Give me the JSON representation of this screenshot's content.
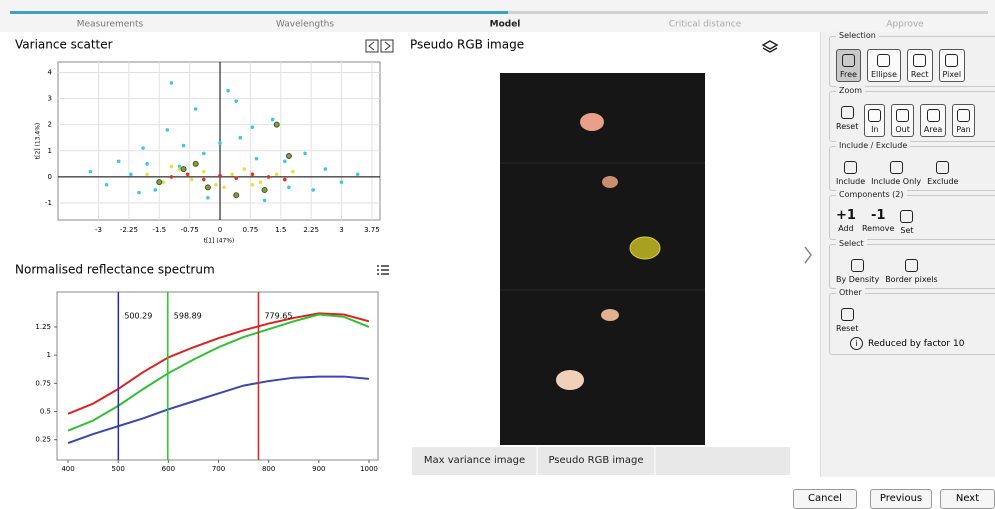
{
  "tabs": [
    "Measurements",
    "Wavelengths",
    "Model",
    "Critical distance",
    "Approve"
  ],
  "scatter": {
    "title": "Variance scatter",
    "xlabel": "t[1] (47%)",
    "ylabel": "t[2] (13.4%)",
    "xlim": [
      -4,
      3.95
    ],
    "ylim": [
      -1.65,
      4.4
    ],
    "xticks": [
      -3,
      -2.25,
      -1.5,
      -0.75,
      0,
      0.75,
      1.5,
      2.25,
      3,
      3.75
    ],
    "yticks": [
      -1,
      0,
      1,
      2,
      3,
      4
    ],
    "grid": true,
    "series": [
      {
        "color": "#3cc8e8",
        "x": [
          -3.2,
          -2.8,
          -2.5,
          -2.2,
          -1.9,
          -1.6,
          -1.3,
          -1.0,
          -0.6,
          -0.3,
          0.2,
          0.5,
          0.9,
          1.3,
          1.7,
          2.1,
          2.6,
          3.0,
          3.4,
          -1.8,
          -0.9,
          0.4,
          1.1,
          -2.0,
          -0.4,
          0.8,
          2.3,
          -1.2,
          0.0,
          1.6
        ],
        "y": [
          0.2,
          -0.3,
          0.6,
          0.1,
          1.1,
          -0.5,
          1.8,
          0.4,
          2.6,
          -0.8,
          3.3,
          1.5,
          0.7,
          2.2,
          -0.4,
          0.9,
          0.3,
          -0.2,
          0.1,
          0.5,
          1.2,
          2.9,
          -0.9,
          -0.6,
          0.9,
          1.9,
          -0.5,
          3.6,
          1.3,
          0.6
        ]
      },
      {
        "color": "#e8e040",
        "x": [
          -1.8,
          -1.4,
          -1.0,
          -0.7,
          -0.4,
          -0.1,
          0.3,
          0.6,
          1.0,
          1.4,
          1.8,
          -1.2,
          0.1,
          0.8,
          1.6
        ],
        "y": [
          0.1,
          -0.2,
          0.3,
          -0.1,
          0.2,
          -0.3,
          0.1,
          0.3,
          -0.2,
          0.1,
          0.2,
          0.4,
          -0.4,
          -0.3,
          -0.1
        ]
      },
      {
        "color": "#e03020",
        "x": [
          -1.2,
          -0.8,
          -0.4,
          0.0,
          0.4,
          0.8,
          1.2,
          1.6
        ],
        "y": [
          0.0,
          0.1,
          -0.1,
          0.05,
          -0.05,
          0.1,
          0.0,
          -0.1
        ]
      },
      {
        "color": "#3a5a2a",
        "x": [
          -1.5,
          -0.9,
          -0.3,
          0.4,
          1.1,
          1.7,
          1.4,
          -0.6
        ],
        "y": [
          -0.2,
          0.3,
          -0.4,
          -0.7,
          -0.5,
          0.8,
          2.0,
          0.5
        ]
      }
    ]
  },
  "spectrum": {
    "title": "Normalised reflectance spectrum",
    "xlim": [
      378,
      1018
    ],
    "ylim": [
      0.07,
      1.56
    ],
    "xticks": [
      400,
      500,
      600,
      700,
      800,
      900,
      1000
    ],
    "yticks": [
      0.25,
      0.5,
      0.75,
      1,
      1.25
    ],
    "x": [
      400,
      450,
      500,
      550,
      600,
      650,
      700,
      750,
      800,
      850,
      900,
      950,
      1000
    ],
    "series": [
      {
        "color": "#e02020",
        "values": [
          0.48,
          0.57,
          0.7,
          0.85,
          0.98,
          1.07,
          1.15,
          1.22,
          1.28,
          1.33,
          1.37,
          1.36,
          1.3
        ]
      },
      {
        "color": "#30c030",
        "values": [
          0.33,
          0.42,
          0.55,
          0.7,
          0.84,
          0.96,
          1.07,
          1.16,
          1.23,
          1.3,
          1.36,
          1.34,
          1.25
        ]
      },
      {
        "color": "#3848b0",
        "values": [
          0.22,
          0.3,
          0.37,
          0.44,
          0.52,
          0.59,
          0.66,
          0.73,
          0.77,
          0.8,
          0.81,
          0.81,
          0.79
        ]
      }
    ],
    "markers": [
      {
        "value": 500.29,
        "color": "#2828b8"
      },
      {
        "value": 598.89,
        "color": "#20d020"
      },
      {
        "value": 779.65,
        "color": "#e02020"
      }
    ]
  },
  "image_panel": {
    "title": "Pseudo RGB image",
    "tabs": [
      "Max variance image",
      "Pseudo RGB image"
    ]
  },
  "tools": [
    {
      "title": "Selection",
      "items": [
        "Free",
        "Ellipse",
        "Rect",
        "Pixel"
      ]
    },
    {
      "title": "Zoom",
      "items": [
        "Reset",
        "In",
        "Out",
        "Area",
        "Pan"
      ]
    },
    {
      "title": "Include / Exclude",
      "items": [
        "Include",
        "Include Only",
        "Exclude"
      ]
    },
    {
      "title": "Components (2)",
      "items": [
        {
          "glyph": "+1",
          "label": "Add"
        },
        {
          "glyph": "-1",
          "label": "Remove"
        },
        "Set"
      ]
    },
    {
      "title": "Select",
      "items": [
        "By Density",
        "Border pixels"
      ]
    },
    {
      "title": "Other",
      "items": [
        "Reset"
      ]
    }
  ],
  "info": "Reduced by factor 10",
  "buttons": [
    "Cancel",
    "Previous",
    "Next"
  ]
}
